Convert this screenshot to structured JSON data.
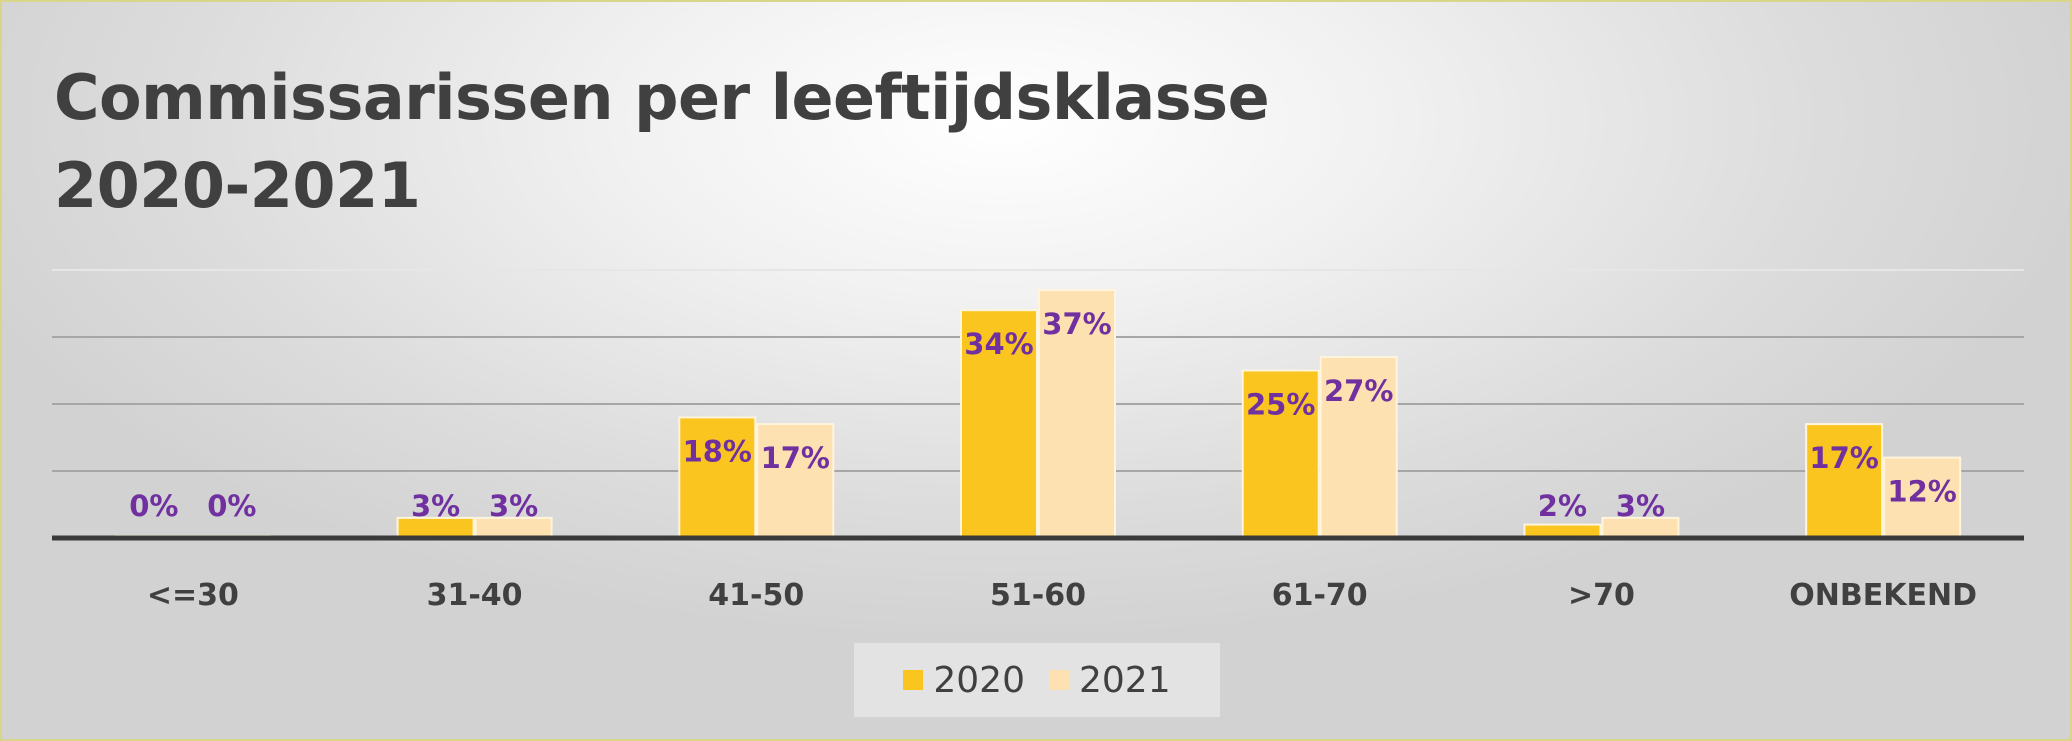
{
  "chart_data": {
    "type": "bar",
    "title_lines": [
      "Commissarissen per leeftijdsklasse",
      "2020-2021"
    ],
    "categories": [
      "<=30",
      "31-40",
      "41-50",
      "51-60",
      "61-70",
      ">70",
      "ONBEKEND"
    ],
    "series": [
      {
        "name": "2020",
        "values": [
          0,
          3,
          18,
          34,
          25,
          2,
          17
        ],
        "labels": [
          "0%",
          "3%",
          "18%",
          "34%",
          "25%",
          "2%",
          "17%"
        ],
        "color": "#fbc520"
      },
      {
        "name": "2021",
        "values": [
          0,
          3,
          17,
          37,
          27,
          3,
          12
        ],
        "labels": [
          "0%",
          "3%",
          "17%",
          "37%",
          "27%",
          "3%",
          "12%"
        ],
        "color": "#fde1b0"
      }
    ],
    "ylim": [
      0,
      40
    ],
    "grid": true,
    "legend_position": "bottom",
    "label_color": "#7030a0",
    "axis_text_color": "#404040"
  }
}
